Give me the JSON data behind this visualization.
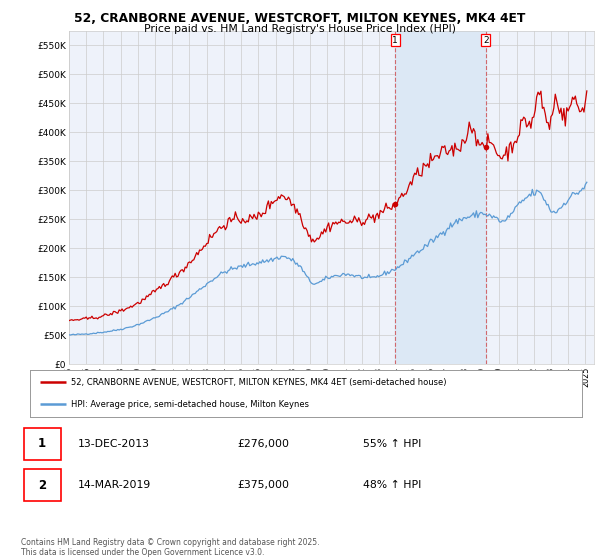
{
  "title_line1": "52, CRANBORNE AVENUE, WESTCROFT, MILTON KEYNES, MK4 4ET",
  "title_line2": "Price paid vs. HM Land Registry's House Price Index (HPI)",
  "ylabel_ticks": [
    "£0",
    "£50K",
    "£100K",
    "£150K",
    "£200K",
    "£250K",
    "£300K",
    "£350K",
    "£400K",
    "£450K",
    "£500K",
    "£550K"
  ],
  "ytick_vals": [
    0,
    50000,
    100000,
    150000,
    200000,
    250000,
    300000,
    350000,
    400000,
    450000,
    500000,
    550000
  ],
  "ylim": [
    0,
    575000
  ],
  "xlim_start": 1995.0,
  "xlim_end": 2025.5,
  "xticks": [
    1995,
    1996,
    1997,
    1998,
    1999,
    2000,
    2001,
    2002,
    2003,
    2004,
    2005,
    2006,
    2007,
    2008,
    2009,
    2010,
    2011,
    2012,
    2013,
    2014,
    2015,
    2016,
    2017,
    2018,
    2019,
    2020,
    2021,
    2022,
    2023,
    2024,
    2025
  ],
  "purchase1_year": 2013.95,
  "purchase1_price": 276000,
  "purchase1_label": "1",
  "purchase2_year": 2019.21,
  "purchase2_price": 375000,
  "purchase2_label": "2",
  "purchase1_date": "13-DEC-2013",
  "purchase1_amount": "£276,000",
  "purchase1_hpi": "55% ↑ HPI",
  "purchase2_date": "14-MAR-2019",
  "purchase2_amount": "£375,000",
  "purchase2_hpi": "48% ↑ HPI",
  "legend_line1": "52, CRANBORNE AVENUE, WESTCROFT, MILTON KEYNES, MK4 4ET (semi-detached house)",
  "legend_line2": "HPI: Average price, semi-detached house, Milton Keynes",
  "footer": "Contains HM Land Registry data © Crown copyright and database right 2025.\nThis data is licensed under the Open Government Licence v3.0.",
  "property_color": "#cc0000",
  "hpi_color": "#5b9bd5",
  "background_color": "#eef2fa",
  "shade_color": "#dce8f5",
  "grid_color": "#cccccc"
}
